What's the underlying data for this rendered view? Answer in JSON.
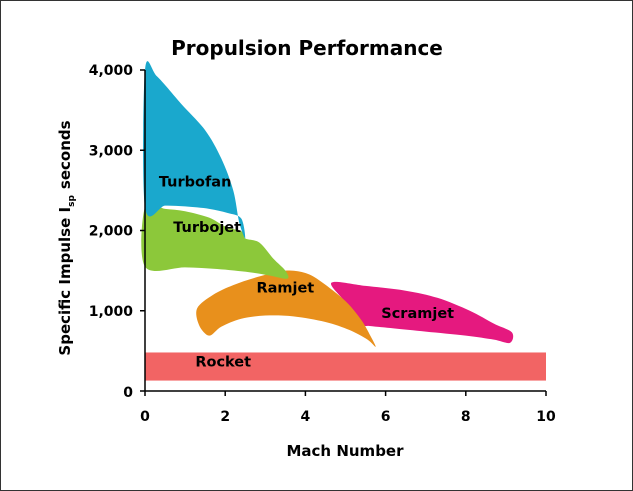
{
  "chart_data": {
    "type": "area",
    "title": "Propulsion Performance",
    "xlabel": "Mach Number",
    "ylabel": {
      "main": "Specific Impulse I",
      "subscript": "sp",
      "unit": "seconds"
    },
    "xlim": [
      0,
      10
    ],
    "ylim": [
      0,
      4000
    ],
    "x_ticks": [
      0,
      2,
      4,
      6,
      8,
      10
    ],
    "y_ticks": [
      0,
      1000,
      2000,
      3000,
      4000
    ],
    "y_tick_labels": [
      "0",
      "1,000",
      "2,000",
      "3,000",
      "4,000"
    ],
    "grid": false,
    "regions": [
      {
        "name": "Turbofan",
        "color": "#1aa8cd",
        "boundary": [
          [
            0,
            4000
          ],
          [
            0.3,
            3920
          ],
          [
            0.9,
            3580
          ],
          [
            1.5,
            3250
          ],
          [
            1.9,
            2900
          ],
          [
            2.2,
            2500
          ],
          [
            2.35,
            2100
          ],
          [
            2.5,
            1900
          ],
          [
            2.4,
            2150
          ],
          [
            2.05,
            2220
          ],
          [
            1.6,
            2270
          ],
          [
            1.0,
            2300
          ],
          [
            0.5,
            2310
          ],
          [
            0,
            2290
          ]
        ]
      },
      {
        "name": "Turbojet",
        "color": "#8cc83a",
        "boundary": [
          [
            0,
            2290
          ],
          [
            0.5,
            2270
          ],
          [
            1.0,
            2240
          ],
          [
            1.6,
            2160
          ],
          [
            2.0,
            2050
          ],
          [
            2.45,
            1980
          ],
          [
            2.5,
            1900
          ],
          [
            2.85,
            1850
          ],
          [
            3.2,
            1650
          ],
          [
            3.5,
            1500
          ],
          [
            3.55,
            1400
          ],
          [
            3.1,
            1440
          ],
          [
            2.6,
            1480
          ],
          [
            1.8,
            1520
          ],
          [
            1.0,
            1540
          ],
          [
            0,
            1550
          ]
        ]
      },
      {
        "name": "Ramjet",
        "color": "#e8901c",
        "boundary": [
          [
            1.3,
            1030
          ],
          [
            1.7,
            1200
          ],
          [
            2.2,
            1320
          ],
          [
            2.8,
            1420
          ],
          [
            3.5,
            1500
          ],
          [
            4.0,
            1470
          ],
          [
            4.4,
            1360
          ],
          [
            5.0,
            1120
          ],
          [
            5.4,
            880
          ],
          [
            5.65,
            660
          ],
          [
            5.75,
            550
          ],
          [
            5.55,
            640
          ],
          [
            5.1,
            760
          ],
          [
            4.5,
            860
          ],
          [
            3.7,
            930
          ],
          [
            3.0,
            940
          ],
          [
            2.4,
            900
          ],
          [
            1.9,
            800
          ],
          [
            1.6,
            690
          ],
          [
            1.35,
            820
          ]
        ]
      },
      {
        "name": "Scramjet",
        "color": "#e5197f",
        "boundary": [
          [
            4.65,
            1350
          ],
          [
            5.5,
            1310
          ],
          [
            6.5,
            1250
          ],
          [
            7.3,
            1160
          ],
          [
            8.1,
            1000
          ],
          [
            8.7,
            840
          ],
          [
            9.15,
            730
          ],
          [
            9.1,
            600
          ],
          [
            8.7,
            640
          ],
          [
            8.0,
            690
          ],
          [
            7.0,
            740
          ],
          [
            6.2,
            780
          ],
          [
            5.6,
            810
          ],
          [
            5.3,
            830
          ],
          [
            5.0,
            1100
          ]
        ]
      },
      {
        "name": "Rocket",
        "color": "#f26464",
        "boundary": [
          [
            0,
            480
          ],
          [
            10,
            480
          ],
          [
            10,
            130
          ],
          [
            0,
            130
          ]
        ]
      }
    ]
  }
}
